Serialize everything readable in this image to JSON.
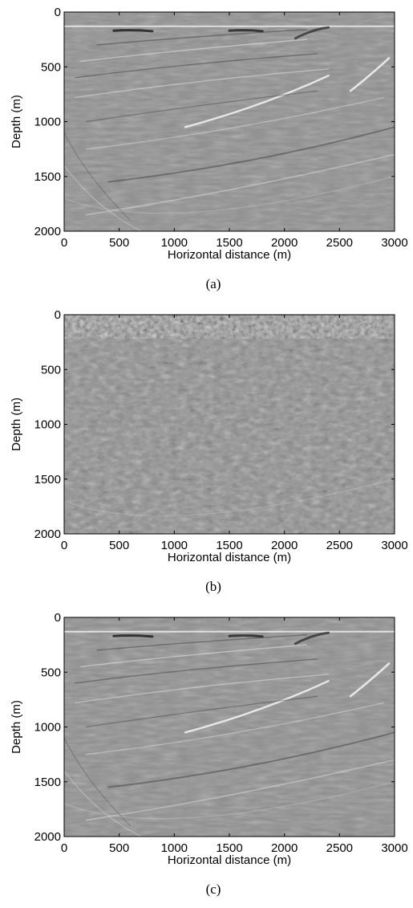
{
  "figure": {
    "panels": [
      {
        "id": "a",
        "caption": "(a)",
        "xlabel": "Horizontal distance (m)",
        "ylabel": "Depth (m)",
        "x_ticks": [
          "0",
          "500",
          "1000",
          "1500",
          "2000",
          "2500",
          "3000"
        ],
        "y_ticks": [
          "0",
          "500",
          "1000",
          "1500",
          "2000"
        ],
        "style": "clean"
      },
      {
        "id": "b",
        "caption": "(b)",
        "xlabel": "Horizontal distance (m)",
        "ylabel": "Depth (m)",
        "x_ticks": [
          "0",
          "500",
          "1000",
          "1500",
          "2000",
          "2500",
          "3000"
        ],
        "y_ticks": [
          "0",
          "500",
          "1000",
          "1500",
          "2000"
        ],
        "style": "noisy"
      },
      {
        "id": "c",
        "caption": "(c)",
        "xlabel": "Horizontal distance (m)",
        "ylabel": "Depth (m)",
        "x_ticks": [
          "0",
          "500",
          "1000",
          "1500",
          "2000",
          "2500",
          "3000"
        ],
        "y_ticks": [
          "0",
          "500",
          "1000",
          "1500",
          "2000"
        ],
        "style": "clean"
      }
    ]
  },
  "chart_data": [
    {
      "type": "heatmap",
      "caption": "(a)",
      "xlabel": "Horizontal distance (m)",
      "ylabel": "Depth (m)",
      "xlim": [
        0,
        3000
      ],
      "ylim": [
        0,
        2000
      ],
      "y_inverted": true,
      "colormap": "grayscale",
      "x_ticks": [
        0,
        500,
        1000,
        1500,
        2000,
        2500,
        3000
      ],
      "y_ticks": [
        0,
        500,
        1000,
        1500,
        2000
      ]
    },
    {
      "type": "heatmap",
      "caption": "(b)",
      "xlabel": "Horizontal distance (m)",
      "ylabel": "Depth (m)",
      "xlim": [
        0,
        3000
      ],
      "ylim": [
        0,
        2000
      ],
      "y_inverted": true,
      "colormap": "grayscale",
      "x_ticks": [
        0,
        500,
        1000,
        1500,
        2000,
        2500,
        3000
      ],
      "y_ticks": [
        0,
        500,
        1000,
        1500,
        2000
      ]
    },
    {
      "type": "heatmap",
      "caption": "(c)",
      "xlabel": "Horizontal distance (m)",
      "ylabel": "Depth (m)",
      "xlim": [
        0,
        3000
      ],
      "ylim": [
        0,
        2000
      ],
      "y_inverted": true,
      "colormap": "grayscale",
      "x_ticks": [
        0,
        500,
        1000,
        1500,
        2000,
        2500,
        3000
      ],
      "y_ticks": [
        0,
        500,
        1000,
        1500,
        2000
      ]
    }
  ]
}
